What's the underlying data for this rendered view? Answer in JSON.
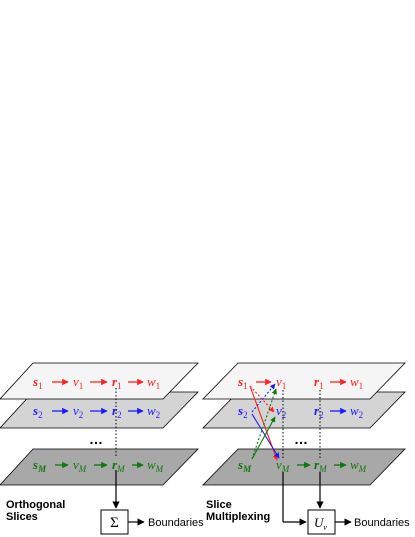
{
  "left_panel": {
    "caption_line1": "Orthogonal",
    "caption_line2": "Slices",
    "sum_symbol": "Σ",
    "output_label": "Boundaries",
    "ellipsis": "…"
  },
  "right_panel": {
    "caption_line1": "Slice",
    "caption_line2": "Multiplexing",
    "u_symbol": "U",
    "u_subscript": "v",
    "output_label": "Boundaries",
    "ellipsis": "…"
  },
  "slices": [
    {
      "s": "s",
      "v": "v",
      "r": "r",
      "w": "w",
      "sub": "1",
      "color": "#ff2020",
      "plane_fill": "#f5f5f5"
    },
    {
      "s": "s",
      "v": "v",
      "r": "r",
      "w": "w",
      "sub": "2",
      "color": "#1a1aff",
      "plane_fill": "#d4d4d4"
    },
    {
      "s": "s",
      "v": "v",
      "r": "r",
      "w": "w",
      "sub": "M",
      "color": "#0a7a0a",
      "plane_fill": "#a8a8a8"
    }
  ]
}
